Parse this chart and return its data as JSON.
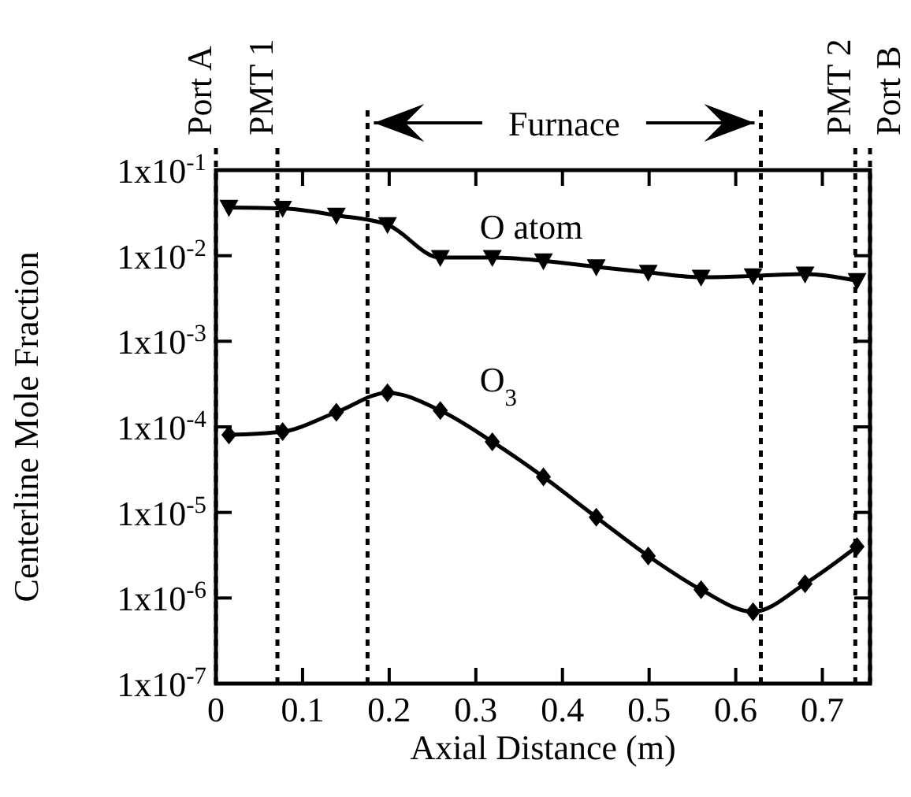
{
  "chart_data": {
    "type": "line",
    "xlabel": "Axial Distance (m)",
    "ylabel": "Centerline Mole Fraction",
    "log": "y",
    "grid": false,
    "line_style": "solid",
    "annotations": [
      "Furnace"
    ],
    "xlim": [
      0,
      0.755
    ],
    "xticks": [
      0,
      0.1,
      0.2,
      0.3,
      0.4,
      0.5,
      0.6,
      0.7
    ],
    "ylim": [
      1e-07,
      0.1
    ],
    "yticks": [
      {
        "value": 0.1,
        "label": "1x10$^{-1}$"
      },
      {
        "value": 0.01,
        "label": "1x10$^{-2}$"
      },
      {
        "value": 0.001,
        "label": "1x10$^{-3}$"
      },
      {
        "value": 0.0001,
        "label": "1x10$^{-4}$"
      },
      {
        "value": 1e-05,
        "label": "1x10$^{-5}$"
      },
      {
        "value": 1e-06,
        "label": "1x10$^{-6}$"
      },
      {
        "value": 1e-07,
        "label": "1x10$^{-7}$"
      }
    ],
    "series": [
      {
        "name": "O atom",
        "color": "#000000",
        "marker": "triangle",
        "x": [
          0.015,
          0.077,
          0.139,
          0.198,
          0.259,
          0.319,
          0.378,
          0.439,
          0.499,
          0.56,
          0.62,
          0.68,
          0.74
        ],
        "values": [
          0.0366,
          0.0357,
          0.0296,
          0.023,
          0.0095,
          0.0095,
          0.0087,
          0.0074,
          0.0064,
          0.0056,
          0.0058,
          0.0061,
          0.0051
        ]
      },
      {
        "name": "O$_{3}$",
        "color": "#000000",
        "marker": "diamond",
        "x": [
          0.015,
          0.077,
          0.139,
          0.198,
          0.259,
          0.319,
          0.378,
          0.439,
          0.499,
          0.56,
          0.62,
          0.68,
          0.74
        ],
        "values": [
          8.05e-05,
          8.8e-05,
          0.000148,
          0.00025,
          0.000155,
          6.7e-05,
          2.6e-05,
          8.8e-06,
          3.1e-06,
          1.25e-06,
          6.9e-07,
          1.47e-06,
          4e-06
        ]
      }
    ],
    "ref_lines": [
      {
        "axis": "x",
        "value": 0,
        "label": "Port A",
        "line_style": "dashed"
      },
      {
        "axis": "x",
        "value": 0.071,
        "label": "PMT 1",
        "line_style": "dashed"
      },
      {
        "axis": "x",
        "value": 0.175,
        "label": null,
        "line_style": "dashed"
      },
      {
        "axis": "x",
        "value": 0.629,
        "label": null,
        "line_style": "dashed"
      },
      {
        "axis": "x",
        "value": 0.738,
        "label": "PMT 2",
        "line_style": "dashed"
      },
      {
        "axis": "x",
        "value": 0.755,
        "label": "Port B",
        "line_style": "dashed"
      }
    ]
  }
}
